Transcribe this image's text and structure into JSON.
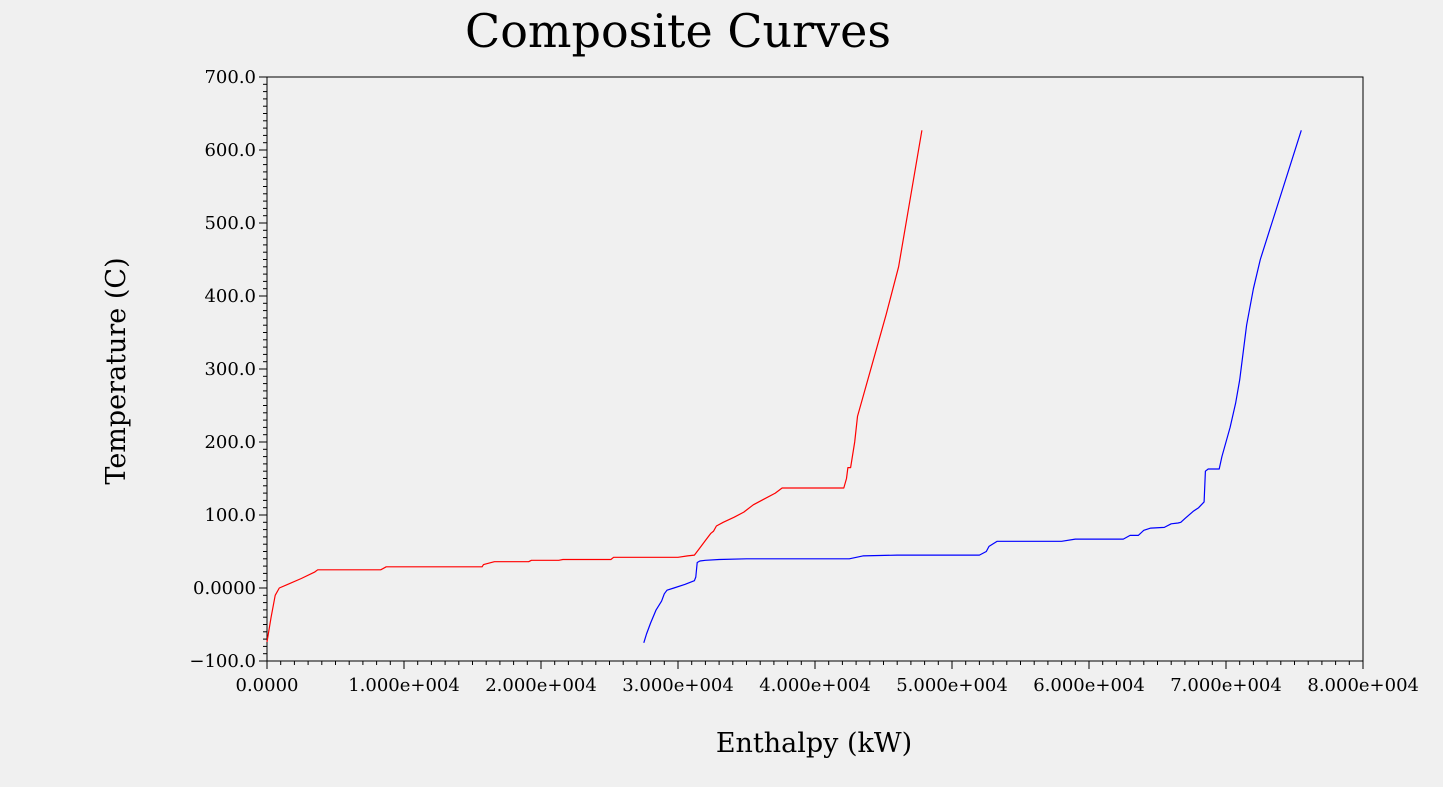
{
  "chart_data": {
    "type": "line",
    "title": "Composite Curves",
    "xlabel": "Enthalpy (kW)",
    "ylabel": "Temperature (C)",
    "xlim": [
      0,
      80000
    ],
    "ylim": [
      -100,
      700
    ],
    "x_ticks": [
      {
        "value": 0,
        "label": "0.0000"
      },
      {
        "value": 10000,
        "label": "1.000e+004"
      },
      {
        "value": 20000,
        "label": "2.000e+004"
      },
      {
        "value": 30000,
        "label": "3.000e+004"
      },
      {
        "value": 40000,
        "label": "4.000e+004"
      },
      {
        "value": 50000,
        "label": "5.000e+004"
      },
      {
        "value": 60000,
        "label": "6.000e+004"
      },
      {
        "value": 70000,
        "label": "7.000e+004"
      },
      {
        "value": 80000,
        "label": "8.000e+004"
      }
    ],
    "y_ticks": [
      {
        "value": -100,
        "label": "−100.0"
      },
      {
        "value": 0,
        "label": "0.0000"
      },
      {
        "value": 100,
        "label": "100.0"
      },
      {
        "value": 200,
        "label": "200.0"
      },
      {
        "value": 300,
        "label": "300.0"
      },
      {
        "value": 400,
        "label": "400.0"
      },
      {
        "value": 500,
        "label": "500.0"
      },
      {
        "value": 600,
        "label": "600.0"
      },
      {
        "value": 700,
        "label": "700.0"
      }
    ],
    "grid": false,
    "legend": "none",
    "series": [
      {
        "color": "#ff0000",
        "points": [
          [
            0,
            -74
          ],
          [
            300,
            -40
          ],
          [
            600,
            -10
          ],
          [
            900,
            0
          ],
          [
            1500,
            5
          ],
          [
            2500,
            13
          ],
          [
            3500,
            22
          ],
          [
            3700,
            25
          ],
          [
            8300,
            25
          ],
          [
            8700,
            29
          ],
          [
            15700,
            29
          ],
          [
            15800,
            32
          ],
          [
            16600,
            36
          ],
          [
            19100,
            36
          ],
          [
            19300,
            38
          ],
          [
            21300,
            38
          ],
          [
            21600,
            39
          ],
          [
            25100,
            39
          ],
          [
            25300,
            42
          ],
          [
            30000,
            42
          ],
          [
            30700,
            44
          ],
          [
            31200,
            45
          ],
          [
            31600,
            55
          ],
          [
            32000,
            65
          ],
          [
            32400,
            75
          ],
          [
            32600,
            78
          ],
          [
            32800,
            85
          ],
          [
            33300,
            90
          ],
          [
            34100,
            97
          ],
          [
            34800,
            104
          ],
          [
            35500,
            114
          ],
          [
            36200,
            121
          ],
          [
            37100,
            130
          ],
          [
            37600,
            137
          ],
          [
            42100,
            137
          ],
          [
            42300,
            150
          ],
          [
            42400,
            165
          ],
          [
            42600,
            165
          ],
          [
            42900,
            200
          ],
          [
            43100,
            235
          ],
          [
            45200,
            375
          ],
          [
            46100,
            440
          ],
          [
            47800,
            627
          ]
        ]
      },
      {
        "color": "#0000ff",
        "points": [
          [
            27500,
            -75
          ],
          [
            27700,
            -63
          ],
          [
            28000,
            -48
          ],
          [
            28400,
            -30
          ],
          [
            28800,
            -18
          ],
          [
            29000,
            -8
          ],
          [
            29200,
            -3
          ],
          [
            29700,
            0
          ],
          [
            30500,
            5
          ],
          [
            31200,
            10
          ],
          [
            31300,
            15
          ],
          [
            31400,
            35
          ],
          [
            31600,
            37
          ],
          [
            32000,
            38
          ],
          [
            33000,
            39
          ],
          [
            35000,
            40
          ],
          [
            40000,
            40
          ],
          [
            42500,
            40
          ],
          [
            43500,
            44
          ],
          [
            46000,
            45
          ],
          [
            52000,
            45
          ],
          [
            52500,
            50
          ],
          [
            52700,
            57
          ],
          [
            53300,
            64
          ],
          [
            58000,
            64
          ],
          [
            59000,
            67
          ],
          [
            62500,
            67
          ],
          [
            63000,
            72
          ],
          [
            63600,
            72
          ],
          [
            64000,
            79
          ],
          [
            64500,
            82
          ],
          [
            65500,
            83
          ],
          [
            66000,
            88
          ],
          [
            66500,
            89
          ],
          [
            66700,
            90
          ],
          [
            67000,
            95
          ],
          [
            67600,
            105
          ],
          [
            68000,
            110
          ],
          [
            68400,
            118
          ],
          [
            68500,
            160
          ],
          [
            68700,
            163
          ],
          [
            69500,
            163
          ],
          [
            69700,
            180
          ],
          [
            70300,
            220
          ],
          [
            70700,
            253
          ],
          [
            71000,
            285
          ],
          [
            71500,
            360
          ],
          [
            72000,
            410
          ],
          [
            72500,
            450
          ],
          [
            75500,
            627
          ]
        ]
      }
    ]
  }
}
